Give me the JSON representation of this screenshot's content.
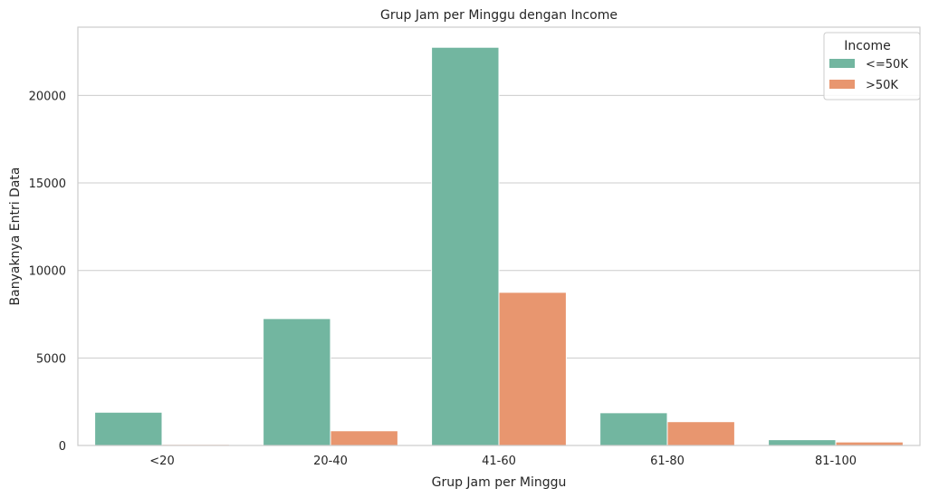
{
  "chart_data": {
    "type": "bar",
    "title": "Grup Jam per Minggu dengan Income",
    "xlabel": "Grup Jam per Minggu",
    "ylabel": "Banyaknya Entri Data",
    "categories": [
      "<20",
      "20-40",
      "41-60",
      "61-80",
      "81-100"
    ],
    "series": [
      {
        "name": "<=50K",
        "color": "#72b6a0",
        "values": [
          1900,
          7250,
          22750,
          1870,
          330
        ]
      },
      {
        "name": ">50K",
        "color": "#e8966f",
        "values": [
          60,
          840,
          8750,
          1360,
          200
        ]
      }
    ],
    "ylim": [
      0,
      23900
    ],
    "yticks": [
      0,
      5000,
      10000,
      15000,
      20000
    ],
    "grid": true,
    "legend": {
      "title": "Income",
      "position": "top-right"
    }
  }
}
